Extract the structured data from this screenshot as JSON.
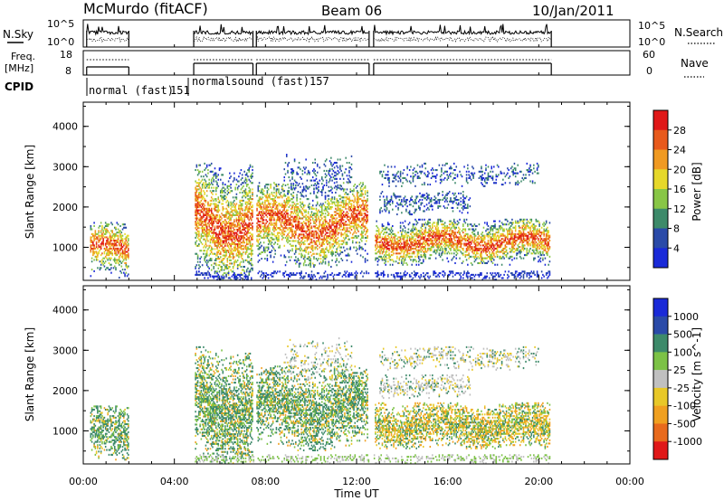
{
  "header": {
    "station": "McMurdo (fitACF)",
    "beam": "Beam 06",
    "date": "10/Jan/2011"
  },
  "left_labels": {
    "nsky": "N.Sky",
    "nsky_tick_top": "10^5",
    "nsky_tick_bottom": "10^0",
    "freq": "Freq.",
    "freq_unit": "[MHz]",
    "freq_tick_top": "18",
    "freq_tick_bottom": "8",
    "cpid": "CPID"
  },
  "right_labels": {
    "nsearch": "N.Search",
    "nsearch_tick_top": "10^5",
    "nsearch_tick_bottom": "10^0",
    "nave": "Nave",
    "nave_tick_top": "60",
    "nave_tick_bottom": "0"
  },
  "cpid_segments": [
    {
      "label": "normal (fast)",
      "id": "151"
    },
    {
      "label": "normalsound (fast)",
      "id": "157"
    }
  ],
  "chart_data": [
    {
      "type": "heatmap",
      "name": "power",
      "ylabel": "Slant Range [km]",
      "yticks": [
        "1000",
        "2000",
        "3000",
        "4000"
      ],
      "colorbar_label": "Power [dB]",
      "colorbar_ticks": [
        "4",
        "8",
        "12",
        "16",
        "20",
        "24",
        "28"
      ],
      "colors": [
        "#1a2ad8",
        "#2a4aa8",
        "#3d8a6a",
        "#88c646",
        "#e6d82a",
        "#f09a22",
        "#e85a1c",
        "#e01818"
      ]
    },
    {
      "type": "heatmap",
      "name": "velocity",
      "ylabel": "Slant Range [km]",
      "yticks": [
        "1000",
        "2000",
        "3000",
        "4000"
      ],
      "colorbar_label": "Velocity [m s^-1]",
      "colorbar_ticks": [
        "1000",
        "500",
        "100",
        "25",
        "-25",
        "-100",
        "-500",
        "-1000"
      ],
      "colors": [
        "#1a2ad8",
        "#2a4aa8",
        "#3d8a6a",
        "#7cc246",
        "#c0c0c0",
        "#e8c828",
        "#f0a020",
        "#e86a1c",
        "#e01818"
      ]
    }
  ],
  "x_axis": {
    "ticks": [
      "00:00",
      "04:00",
      "08:00",
      "12:00",
      "16:00",
      "20:00",
      "00:00"
    ],
    "label": "Time UT"
  }
}
